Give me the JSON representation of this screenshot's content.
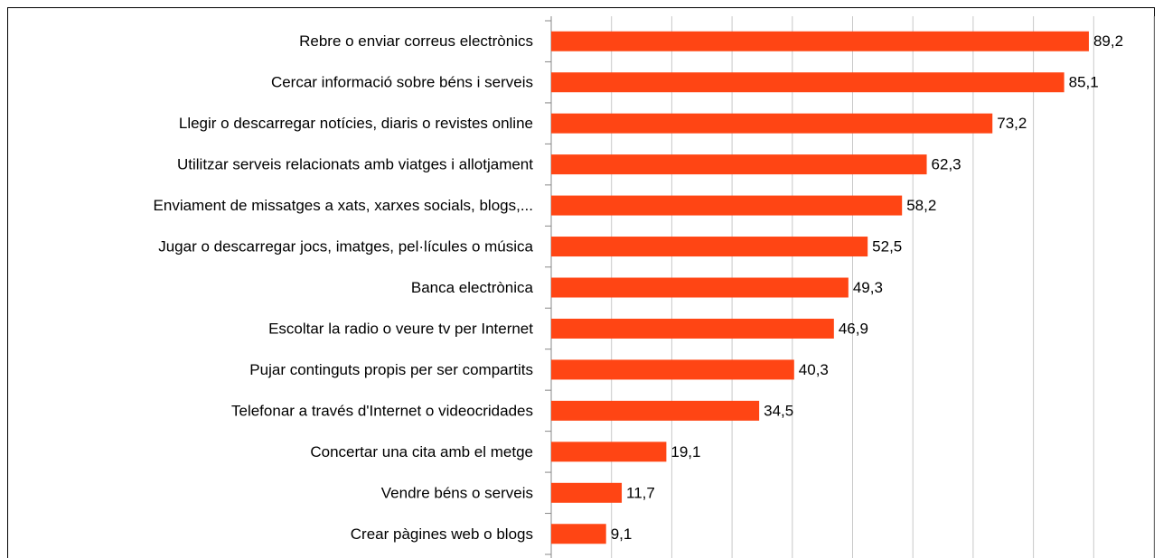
{
  "chart_data": {
    "type": "bar",
    "orientation": "horizontal",
    "categories": [
      "Rebre o enviar correus electrònics",
      "Cercar informació sobre béns i serveis",
      "Llegir o descarregar notícies, diaris o revistes online",
      "Utilitzar serveis relacionats amb viatges i allotjament",
      "Enviament de missatges a xats, xarxes socials, blogs,...",
      "Jugar o descarregar jocs, imatges, pel·lícules o música",
      "Banca electrònica",
      "Escoltar la radio o veure tv per Internet",
      "Pujar continguts propis per ser compartits",
      "Telefonar a través d'Internet o videocridades",
      "Concertar una cita amb el metge",
      "Vendre béns o serveis",
      "Crear pàgines web o blogs"
    ],
    "values": [
      89.2,
      85.1,
      73.2,
      62.3,
      58.2,
      52.5,
      49.3,
      46.9,
      40.3,
      34.5,
      19.1,
      11.7,
      9.1
    ],
    "value_labels": [
      "89,2",
      "85,1",
      "73,2",
      "62,3",
      "58,2",
      "52,5",
      "49,3",
      "46,9",
      "40,3",
      "34,5",
      "19,1",
      "11,7",
      "9,1"
    ],
    "color": "#ff4514",
    "xlim": [
      0,
      100
    ],
    "xticks": [
      0,
      10,
      20,
      30,
      40,
      50,
      60,
      70,
      80,
      90,
      100
    ],
    "grid": true
  }
}
